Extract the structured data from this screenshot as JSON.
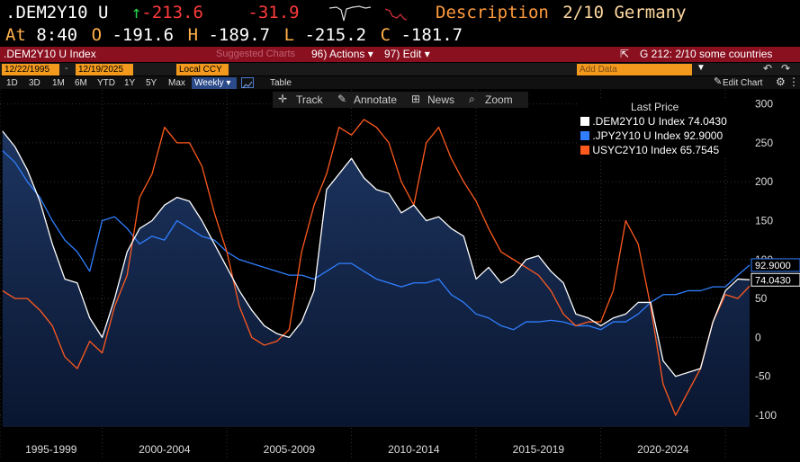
{
  "header": {
    "ticker": ".DEM2Y10 U",
    "arrow": "↑",
    "last": "-213.6",
    "change": "-31.9",
    "desc_label": "Description",
    "desc_value": "2/10 Germany",
    "at_label": "At",
    "time": "8:40",
    "o_label": "O",
    "open": "-191.6",
    "h_label": "H",
    "high": "-189.7",
    "l_label": "L",
    "low": "-215.2",
    "c_label": "C",
    "close": "-181.7"
  },
  "redbar": {
    "index": ".DEM2Y10 U Index",
    "suggested": "Suggested Charts",
    "actions": "96) Actions ▾",
    "edit": "97) Edit ▾",
    "page": "G 212: 2/10 some countries"
  },
  "toolbar": {
    "from": "12/22/1995",
    "to": "12/19/2025",
    "ccy": "Local CCY",
    "add_data": "Add Data",
    "edit_chart": "Edit Chart"
  },
  "ranges": [
    "1D",
    "3D",
    "1M",
    "6M",
    "YTD",
    "1Y",
    "5Y",
    "Max"
  ],
  "frequency": "Weekly ▾",
  "table_label": "Table",
  "tools": [
    "Track",
    "Annotate",
    "News",
    "Zoom"
  ],
  "legend": {
    "title": "Last Price",
    "items": [
      {
        "name": ".DEM2Y10 U Index",
        "value": "74.0430",
        "color": "#ffffff"
      },
      {
        "name": ".JPY2Y10 U Index",
        "value": "92.9000",
        "color": "#2f7fff"
      },
      {
        "name": "USYC2Y10 Index",
        "value": "65.7545",
        "color": "#ff5a1e"
      }
    ]
  },
  "chart_data": {
    "type": "line",
    "yticks": [
      300,
      250,
      200,
      150,
      100,
      50,
      0,
      -50,
      -100
    ],
    "ylim": [
      -115,
      318
    ],
    "xlim": [
      1995.9,
      2025.97
    ],
    "x_labels": [
      "1995-1999",
      "2000-2004",
      "2005-2009",
      "2010-2014",
      "2015-2019",
      "2020-2024"
    ],
    "last_value_tags": [
      {
        "value": "92.9000",
        "color": "#2f7fff"
      },
      {
        "value": "74.0430",
        "color": "#ffffff"
      }
    ],
    "series": [
      {
        "name": ".DEM2Y10 U Index",
        "color": "#ffffff",
        "fill": true,
        "x": [
          1996.0,
          1996.5,
          1997.0,
          1997.5,
          1998.0,
          1998.5,
          1999.0,
          1999.5,
          2000.0,
          2000.5,
          2001.0,
          2001.5,
          2002.0,
          2002.5,
          2003.0,
          2003.5,
          2004.0,
          2004.5,
          2005.0,
          2005.5,
          2006.0,
          2006.5,
          2007.0,
          2007.5,
          2008.0,
          2008.5,
          2009.0,
          2009.5,
          2010.0,
          2010.5,
          2011.0,
          2011.5,
          2012.0,
          2012.5,
          2013.0,
          2013.5,
          2014.0,
          2014.5,
          2015.0,
          2015.5,
          2016.0,
          2016.5,
          2017.0,
          2017.5,
          2018.0,
          2018.5,
          2019.0,
          2019.5,
          2020.0,
          2020.5,
          2021.0,
          2021.5,
          2022.0,
          2022.5,
          2023.0,
          2023.5,
          2024.0,
          2024.5,
          2025.0,
          2025.5,
          2025.97
        ],
        "y": [
          265,
          245,
          215,
          175,
          120,
          75,
          70,
          25,
          0,
          50,
          110,
          140,
          150,
          170,
          180,
          175,
          150,
          120,
          90,
          60,
          35,
          15,
          5,
          0,
          20,
          60,
          190,
          210,
          230,
          205,
          190,
          185,
          160,
          170,
          150,
          155,
          140,
          130,
          75,
          90,
          70,
          80,
          100,
          105,
          85,
          70,
          30,
          25,
          15,
          25,
          30,
          45,
          45,
          -30,
          -50,
          -45,
          -40,
          20,
          60,
          75,
          74
        ]
      },
      {
        "name": ".JPY2Y10 U Index",
        "color": "#2f7fff",
        "fill": false,
        "x": [
          1996.0,
          1996.5,
          1997.0,
          1997.5,
          1998.0,
          1998.5,
          1999.0,
          1999.5,
          2000.0,
          2000.5,
          2001.0,
          2001.5,
          2002.0,
          2002.5,
          2003.0,
          2003.5,
          2004.0,
          2004.5,
          2005.0,
          2005.5,
          2006.0,
          2006.5,
          2007.0,
          2007.5,
          2008.0,
          2008.5,
          2009.0,
          2009.5,
          2010.0,
          2010.5,
          2011.0,
          2011.5,
          2012.0,
          2012.5,
          2013.0,
          2013.5,
          2014.0,
          2014.5,
          2015.0,
          2015.5,
          2016.0,
          2016.5,
          2017.0,
          2017.5,
          2018.0,
          2018.5,
          2019.0,
          2019.5,
          2020.0,
          2020.5,
          2021.0,
          2021.5,
          2022.0,
          2022.5,
          2023.0,
          2023.5,
          2024.0,
          2024.5,
          2025.0,
          2025.5,
          2025.97
        ],
        "y": [
          240,
          225,
          200,
          180,
          150,
          125,
          110,
          85,
          150,
          155,
          140,
          120,
          130,
          125,
          150,
          140,
          130,
          125,
          110,
          100,
          95,
          90,
          85,
          80,
          80,
          75,
          85,
          95,
          95,
          85,
          75,
          70,
          65,
          70,
          70,
          75,
          55,
          45,
          30,
          25,
          15,
          10,
          20,
          20,
          22,
          20,
          15,
          15,
          10,
          20,
          20,
          30,
          45,
          55,
          55,
          60,
          60,
          65,
          65,
          80,
          93
        ]
      },
      {
        "name": "USYC2Y10 Index",
        "color": "#ff5a1e",
        "fill": false,
        "x": [
          1996.0,
          1996.5,
          1997.0,
          1997.5,
          1998.0,
          1998.5,
          1999.0,
          1999.5,
          2000.0,
          2000.5,
          2001.0,
          2001.5,
          2002.0,
          2002.5,
          2003.0,
          2003.5,
          2004.0,
          2004.5,
          2005.0,
          2005.5,
          2006.0,
          2006.5,
          2007.0,
          2007.5,
          2008.0,
          2008.5,
          2009.0,
          2009.5,
          2010.0,
          2010.5,
          2011.0,
          2011.5,
          2012.0,
          2012.5,
          2013.0,
          2013.5,
          2014.0,
          2014.5,
          2015.0,
          2015.5,
          2016.0,
          2016.5,
          2017.0,
          2017.5,
          2018.0,
          2018.5,
          2019.0,
          2019.5,
          2020.0,
          2020.5,
          2021.0,
          2021.5,
          2022.0,
          2022.5,
          2023.0,
          2023.5,
          2024.0,
          2024.5,
          2025.0,
          2025.5,
          2025.97
        ],
        "y": [
          60,
          50,
          50,
          35,
          15,
          -25,
          -40,
          -5,
          -20,
          40,
          80,
          180,
          210,
          270,
          250,
          250,
          220,
          160,
          110,
          40,
          0,
          -10,
          -5,
          10,
          110,
          170,
          210,
          270,
          260,
          280,
          270,
          250,
          200,
          170,
          250,
          270,
          230,
          200,
          175,
          140,
          110,
          100,
          90,
          80,
          60,
          30,
          15,
          20,
          20,
          60,
          150,
          120,
          40,
          -60,
          -100,
          -70,
          -40,
          20,
          55,
          50,
          66
        ]
      }
    ]
  }
}
